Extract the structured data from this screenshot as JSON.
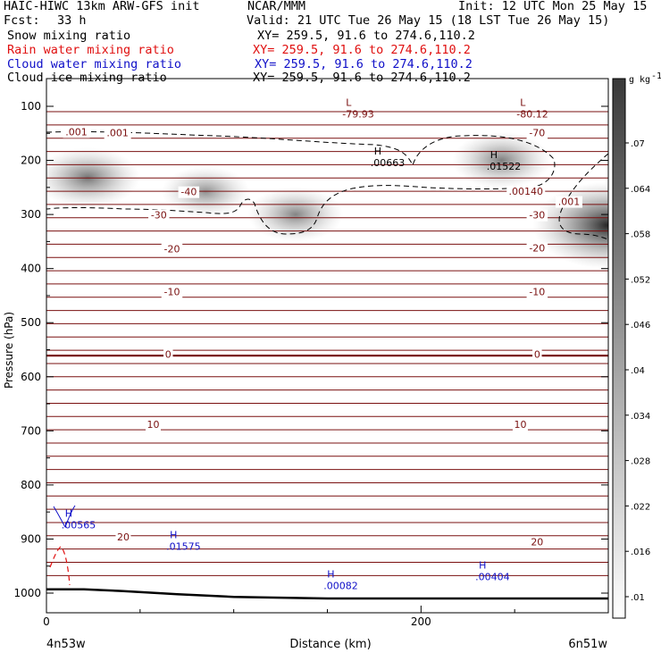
{
  "header": {
    "model": "HAIC-HIWC 13km ARW-GFS init",
    "org": "NCAR/MMM",
    "init": "Init: 12 UTC Mon 25 May 15",
    "fcst_label": "Fcst:",
    "fcst_value": "33 h",
    "valid": "Valid: 21 UTC Tue 26 May 15 (18 LST Tue 26 May 15)"
  },
  "fields": [
    {
      "name": "Snow mixing ratio",
      "xy": "XY= 259.5, 91.6 to 274.6,110.2",
      "color": "#000000"
    },
    {
      "name": "Rain water mixing ratio",
      "xy": "XY= 259.5, 91.6 to 274.6,110.2",
      "color": "#e01010"
    },
    {
      "name": "Cloud water mixing ratio",
      "xy": "XY= 259.5, 91.6 to 274.6,110.2",
      "color": "#1010c8"
    },
    {
      "name": "Cloud ice mixing ratio",
      "xy": "XY= 259.5, 91.6 to 274.6,110.2",
      "color": "#000000"
    }
  ],
  "chart_data": {
    "type": "contour cross-section",
    "xlabel": "Distance (km)",
    "ylabel": "Pressure (hPa)",
    "xlim": [
      0,
      300
    ],
    "ylim": [
      1010,
      60
    ],
    "x_ticks": [
      0,
      200
    ],
    "y_ticks": [
      100,
      200,
      300,
      400,
      500,
      600,
      700,
      800,
      900,
      1000
    ],
    "left_endpoint": "4n53w",
    "right_endpoint": "6n51w",
    "colorbar": {
      "unit": "g kg",
      "unit_exp": "-1",
      "labels": [
        ".07",
        ".064",
        ".058",
        ".052",
        ".046",
        ".04",
        ".034",
        ".028",
        ".022",
        ".016",
        ".01"
      ]
    },
    "temperature_contours": [
      {
        "label": "-70",
        "pressure": 148
      },
      {
        "label": "-40",
        "pressure": 255
      },
      {
        "label": "-30",
        "pressure": 290
      },
      {
        "label": "-20",
        "pressure": 354
      },
      {
        "label": "-10",
        "pressure": 434
      },
      {
        "label": "0",
        "pressure": 561
      },
      {
        "label": "10",
        "pressure": 688
      },
      {
        "label": "20",
        "pressure": 887
      }
    ],
    "contour_labels": [
      {
        "text": "-70",
        "x": 262,
        "pressure": 149
      },
      {
        "text": "-40",
        "x": 76,
        "pressure": 258
      },
      {
        "text": "-30",
        "x": 60,
        "pressure": 301
      },
      {
        "text": "-30",
        "x": 262,
        "pressure": 301
      },
      {
        "text": "-20",
        "x": 67,
        "pressure": 363
      },
      {
        "text": "-20",
        "x": 262,
        "pressure": 362
      },
      {
        "text": "-10",
        "x": 67,
        "pressure": 443
      },
      {
        "text": "-10",
        "x": 262,
        "pressure": 443
      },
      {
        "text": "0",
        "x": 65,
        "pressure": 558
      },
      {
        "text": "0",
        "x": 262,
        "pressure": 558
      },
      {
        "text": "10",
        "x": 57,
        "pressure": 688
      },
      {
        "text": "10",
        "x": 253,
        "pressure": 688
      },
      {
        "text": "20",
        "x": 41,
        "pressure": 896
      },
      {
        "text": "20",
        "x": 262,
        "pressure": 905
      },
      {
        "text": ".001",
        "x": 16,
        "pressure": 147
      },
      {
        "text": ".001",
        "x": 38,
        "pressure": 149
      },
      {
        "text": ".001",
        "x": 279,
        "pressure": 276
      },
      {
        "text": ".00140",
        "x": 256,
        "pressure": 257
      }
    ],
    "extrema": [
      {
        "kind": "L",
        "value": "-79.93",
        "x": 158,
        "pressure": 112,
        "color": "#7a1010"
      },
      {
        "kind": "L",
        "value": "-80.12",
        "x": 251,
        "pressure": 112,
        "color": "#7a1010"
      },
      {
        "kind": "H",
        "value": ".00663",
        "x": 173,
        "pressure": 202,
        "color": "#000000"
      },
      {
        "kind": "H",
        "value": ".01522",
        "x": 235,
        "pressure": 209,
        "color": "#000000"
      },
      {
        "kind": "H",
        "value": ".00565",
        "x": 8,
        "pressure": 872,
        "color": "#1010c8"
      },
      {
        "kind": "H",
        "value": ".01575",
        "x": 64,
        "pressure": 912,
        "color": "#1010c8"
      },
      {
        "kind": "H",
        "value": ".00082",
        "x": 148,
        "pressure": 984,
        "color": "#1010c8"
      },
      {
        "kind": "H",
        "value": ".00404",
        "x": 229,
        "pressure": 968,
        "color": "#1010c8"
      }
    ],
    "cloud_ice_maxima": [
      {
        "x": 22,
        "pressure": 232,
        "value": 0.03
      },
      {
        "x": 85,
        "pressure": 258,
        "value": 0.016
      },
      {
        "x": 133,
        "pressure": 300,
        "value": 0.022
      },
      {
        "x": 243,
        "pressure": 200,
        "value": 0.025
      },
      {
        "x": 300,
        "pressure": 320,
        "value": 0.07
      }
    ],
    "terrain_pressure": [
      [
        0,
        993
      ],
      [
        20,
        993
      ],
      [
        40,
        996
      ],
      [
        70,
        1002
      ],
      [
        100,
        1007
      ],
      [
        150,
        1010
      ],
      [
        300,
        1010
      ]
    ]
  }
}
